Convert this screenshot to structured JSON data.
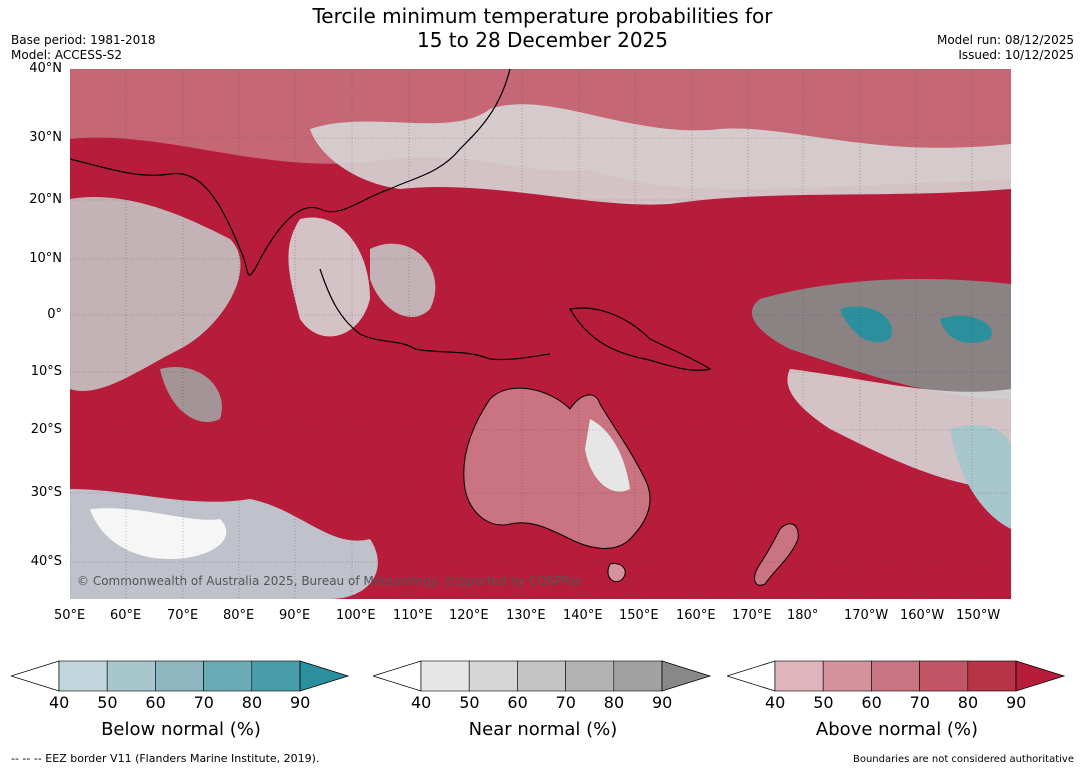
{
  "title": {
    "line1": "Tercile minimum temperature probabilities for",
    "line2": "15 to 28 December 2025"
  },
  "meta": {
    "base_period": "Base period: 1981-2018",
    "model": "Model: ACCESS-S2",
    "model_run": "Model run: 08/12/2025",
    "issued": "Issued: 10/12/2025"
  },
  "map": {
    "lat_labels": [
      "40°N",
      "30°N",
      "20°N",
      "10°N",
      "0°",
      "10°S",
      "20°S",
      "30°S",
      "40°S"
    ],
    "lon_labels": [
      "50°E",
      "60°E",
      "70°E",
      "80°E",
      "90°E",
      "100°E",
      "110°E",
      "120°E",
      "130°E",
      "140°E",
      "150°E",
      "160°E",
      "170°E",
      "180°",
      "170°W",
      "160°W",
      "150°W"
    ],
    "copyright": "© Commonwealth of Australia 2025, Bureau of Meteorology, supported by COSPPac",
    "background_color": "#b71c3a"
  },
  "colorbars": [
    {
      "title": "Below normal (%)",
      "ticks": [
        "40",
        "50",
        "60",
        "70",
        "80",
        "90"
      ],
      "colors": [
        "#c0d5dc",
        "#a7c7cc",
        "#8db6c0",
        "#6aabb6",
        "#4a9eac",
        "#2b8f9e"
      ]
    },
    {
      "title": "Near normal (%)",
      "ticks": [
        "40",
        "50",
        "60",
        "70",
        "80",
        "90"
      ],
      "colors": [
        "#e6e6e6",
        "#d6d6d6",
        "#c4c4c4",
        "#b3b3b3",
        "#a2a2a2",
        "#888888"
      ]
    },
    {
      "title": "Above normal (%)",
      "ticks": [
        "40",
        "50",
        "60",
        "70",
        "80",
        "90"
      ],
      "colors": [
        "#e0b4bc",
        "#d4929c",
        "#c97480",
        "#c25566",
        "#b73447",
        "#b71c3a"
      ]
    }
  ],
  "footer": {
    "eez": "--  --  -- EEZ border V11 (Flanders Marine Institute, 2019).",
    "boundaries": "Boundaries are not considered authoritative"
  }
}
